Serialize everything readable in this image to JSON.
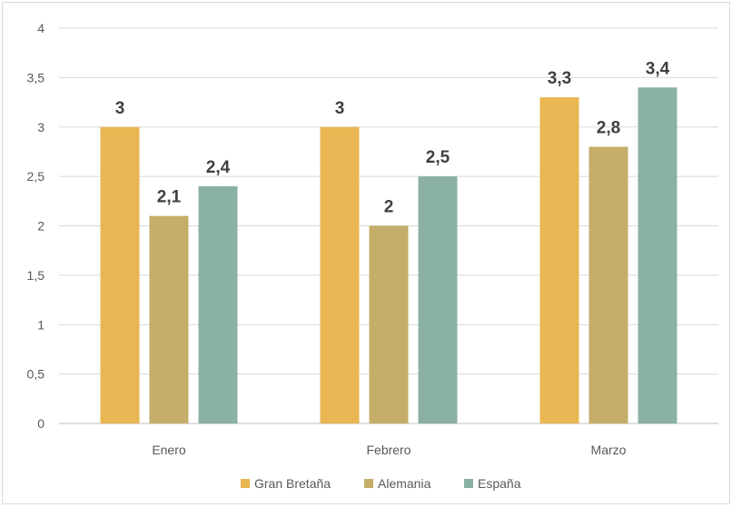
{
  "chart_data": {
    "type": "bar",
    "title": "",
    "xlabel": "",
    "ylabel": "",
    "categories": [
      "Enero",
      "Febrero",
      "Marzo"
    ],
    "series": [
      {
        "name": "Gran Bretaña",
        "color": "#E8B652",
        "values": [
          3,
          3,
          3.3
        ],
        "labels": [
          "3",
          "3",
          "3,3"
        ]
      },
      {
        "name": "Alemania",
        "color": "#C4AE6A",
        "values": [
          2.1,
          2,
          2.8
        ],
        "labels": [
          "2,1",
          "2",
          "2,8"
        ]
      },
      {
        "name": "España",
        "color": "#8AB1A1",
        "values": [
          2.4,
          2.5,
          3.4
        ],
        "labels": [
          "2,4",
          "2,5",
          "3,4"
        ]
      }
    ],
    "ylim": [
      0,
      4
    ],
    "yticks": [
      0,
      0.5,
      1,
      1.5,
      2,
      2.5,
      3,
      3.5,
      4
    ],
    "ytick_labels": [
      "0",
      "0,5",
      "1",
      "1,5",
      "2",
      "2,5",
      "3",
      "3,5",
      "4"
    ],
    "grid": true,
    "legend_position": "bottom"
  }
}
